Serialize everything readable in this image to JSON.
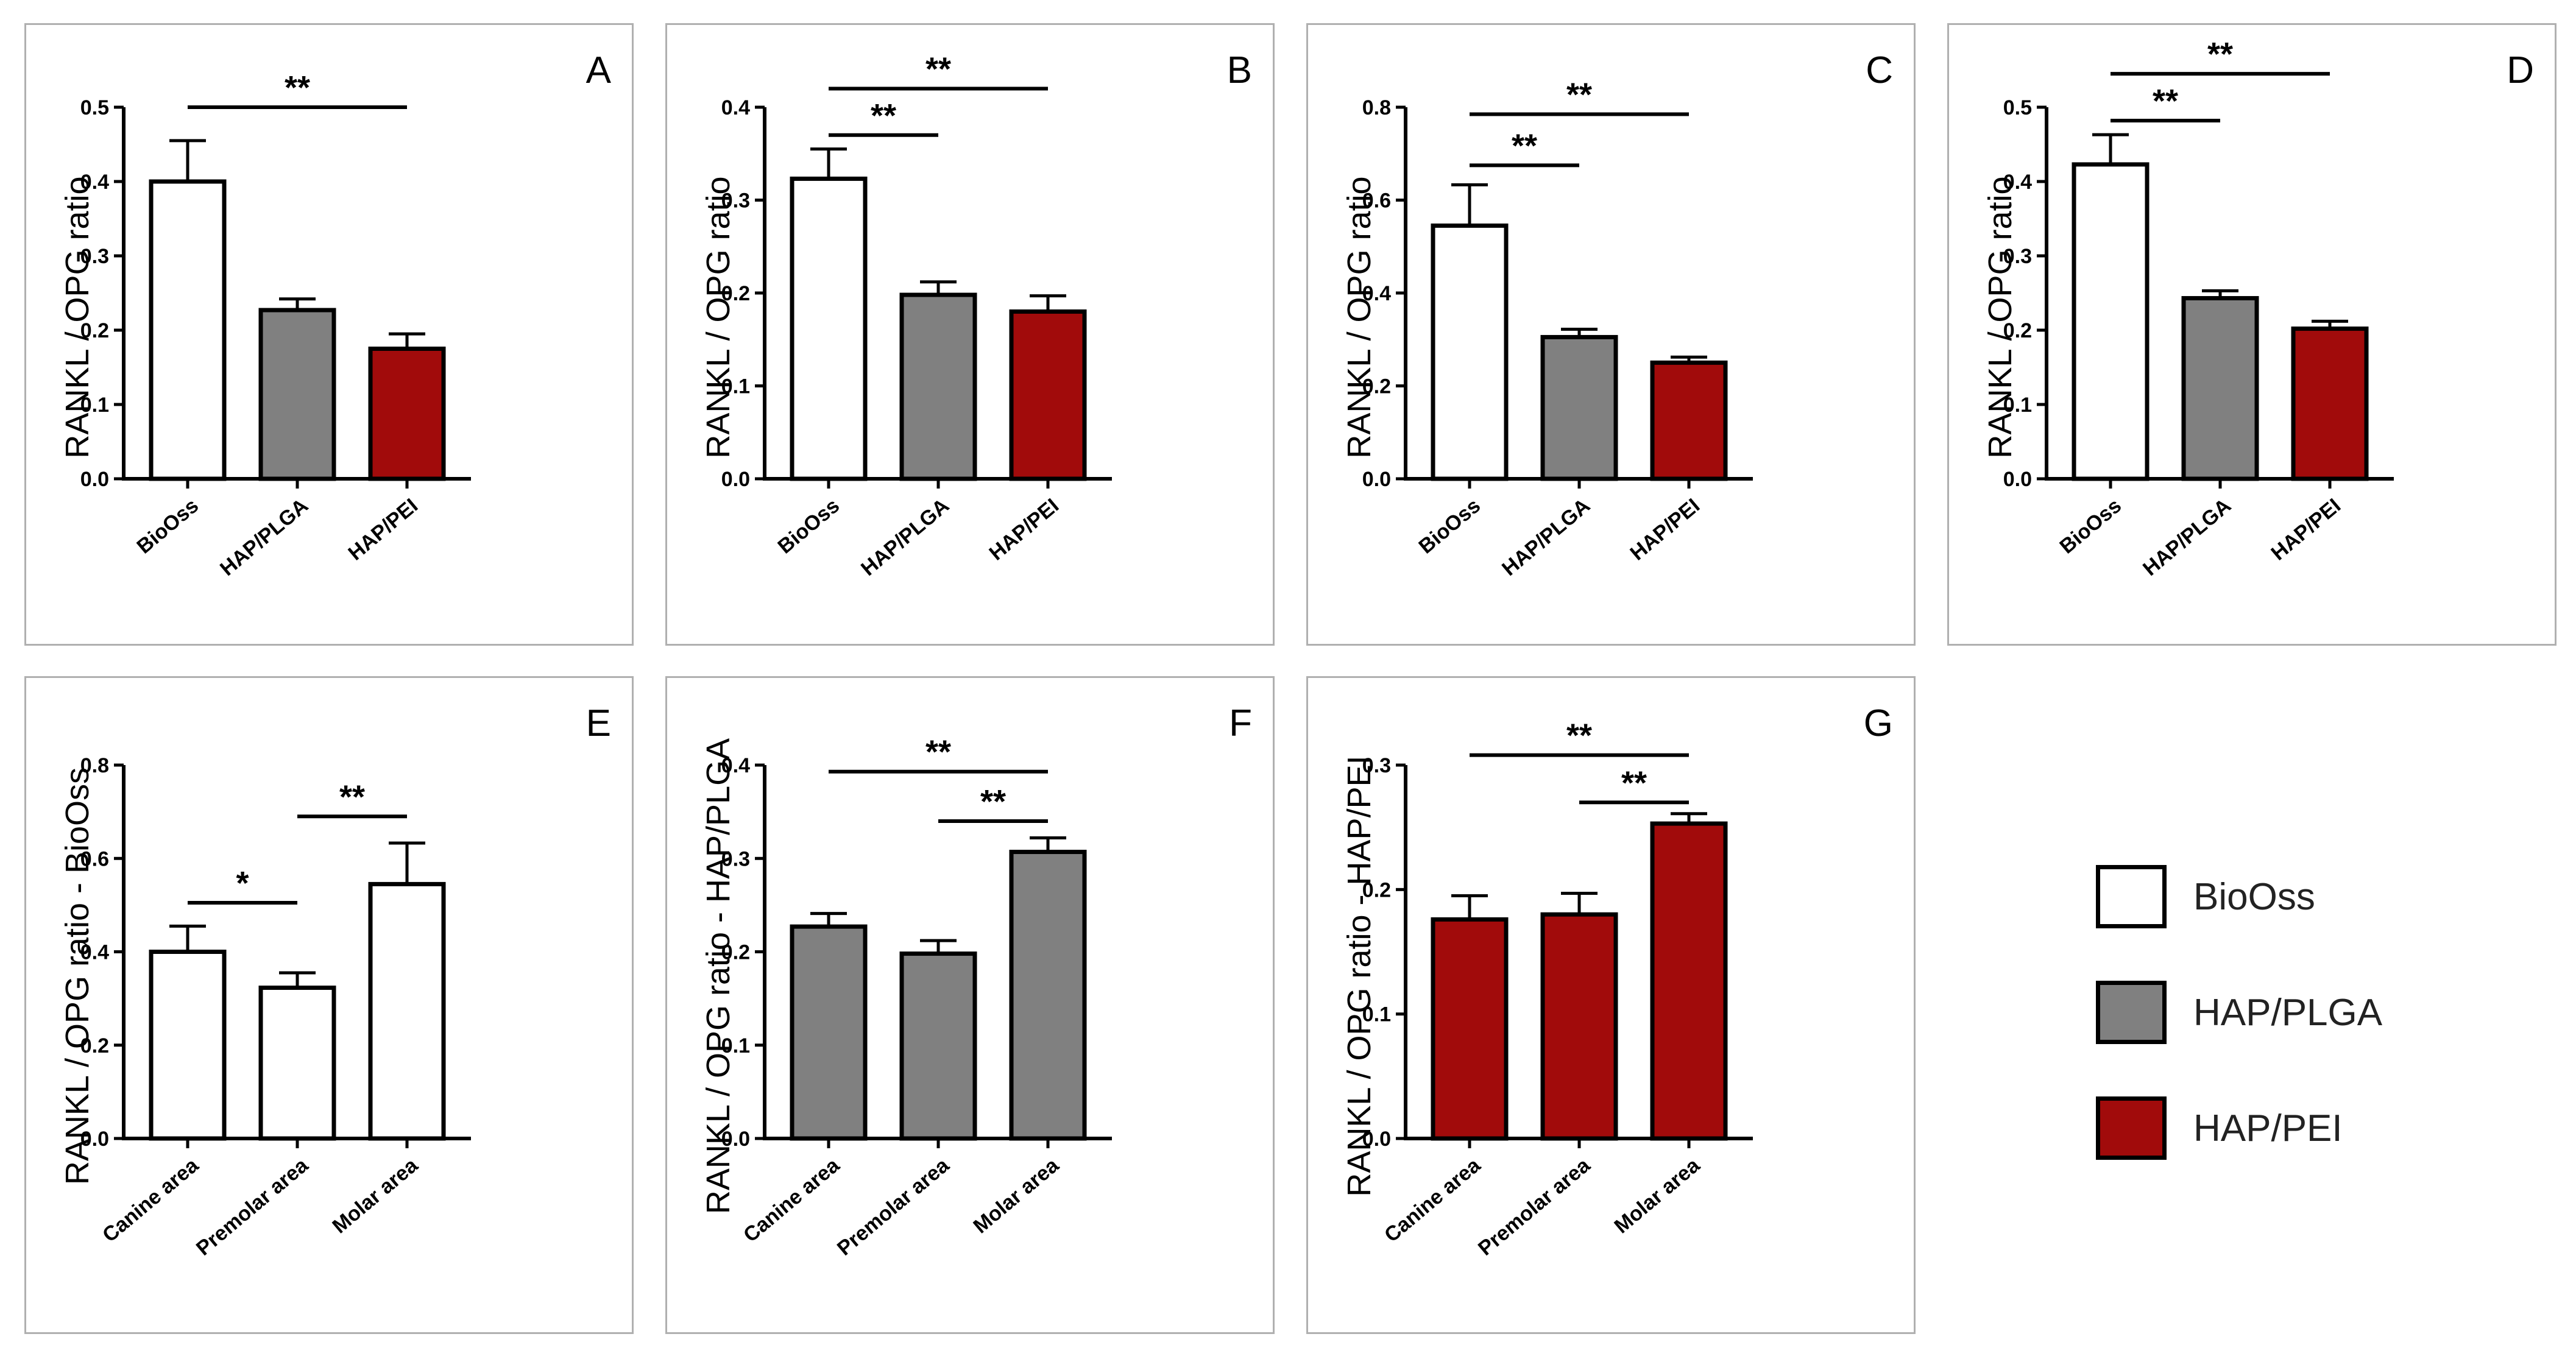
{
  "colors": {
    "BioOss": "#ffffff",
    "HAP/PLGA": "#808080",
    "HAP/PEI": "#a10b0b",
    "edge": "#000000"
  },
  "legend": {
    "items": [
      {
        "label": "BioOss",
        "color": "#ffffff"
      },
      {
        "label": "HAP/PLGA",
        "color": "#808080"
      },
      {
        "label": "HAP/PEI",
        "color": "#a10b0b"
      }
    ]
  },
  "chart_data": [
    {
      "panel": "A",
      "type": "bar",
      "ylabel": "RANKL / OPG ratio",
      "categories": [
        "BioOss",
        "HAP/PLGA",
        "HAP/PEI"
      ],
      "values": [
        0.4,
        0.227,
        0.175
      ],
      "errors": [
        0.055,
        0.015,
        0.02
      ],
      "colors": [
        "#ffffff",
        "#808080",
        "#a10b0b"
      ],
      "ylim": [
        0,
        0.5
      ],
      "yticks": [
        "0.0",
        "0.1",
        "0.2",
        "0.3",
        "0.4",
        "0.5"
      ],
      "significance": [
        {
          "from": 0,
          "to": 2,
          "label": "**",
          "y": 0.5
        }
      ]
    },
    {
      "panel": "B",
      "type": "bar",
      "ylabel": "RANKL / OPG ratio",
      "categories": [
        "BioOss",
        "HAP/PLGA",
        "HAP/PEI"
      ],
      "values": [
        0.323,
        0.198,
        0.18
      ],
      "errors": [
        0.032,
        0.014,
        0.017
      ],
      "colors": [
        "#ffffff",
        "#808080",
        "#a10b0b"
      ],
      "ylim": [
        0,
        0.4
      ],
      "yticks": [
        "0.0",
        "0.1",
        "0.2",
        "0.3",
        "0.4"
      ],
      "significance": [
        {
          "from": 0,
          "to": 1,
          "label": "**",
          "y": 0.37
        },
        {
          "from": 0,
          "to": 2,
          "label": "**",
          "y": 0.42
        }
      ]
    },
    {
      "panel": "C",
      "type": "bar",
      "ylabel": "RANKL / OPG ratio",
      "categories": [
        "BioOss",
        "HAP/PLGA",
        "HAP/PEI"
      ],
      "values": [
        0.545,
        0.305,
        0.25
      ],
      "errors": [
        0.088,
        0.017,
        0.012
      ],
      "colors": [
        "#ffffff",
        "#808080",
        "#a10b0b"
      ],
      "ylim": [
        0,
        0.8
      ],
      "yticks": [
        "0.0",
        "0.2",
        "0.4",
        "0.6",
        "0.8"
      ],
      "significance": [
        {
          "from": 0,
          "to": 1,
          "label": "**",
          "y": 0.675
        },
        {
          "from": 0,
          "to": 2,
          "label": "**",
          "y": 0.785
        }
      ]
    },
    {
      "panel": "D",
      "type": "bar",
      "ylabel": "RANKL / OPG ratio",
      "categories": [
        "BioOss",
        "HAP/PLGA",
        "HAP/PEI"
      ],
      "values": [
        0.423,
        0.243,
        0.202
      ],
      "errors": [
        0.04,
        0.01,
        0.01
      ],
      "colors": [
        "#ffffff",
        "#808080",
        "#a10b0b"
      ],
      "ylim": [
        0,
        0.5
      ],
      "yticks": [
        "0.0",
        "0.1",
        "0.2",
        "0.3",
        "0.4",
        "0.5"
      ],
      "significance": [
        {
          "from": 0,
          "to": 1,
          "label": "**",
          "y": 0.482
        },
        {
          "from": 0,
          "to": 2,
          "label": "**",
          "y": 0.545
        }
      ]
    },
    {
      "panel": "E",
      "type": "bar",
      "ylabel": "RANKL / OPG ratio - BioOss",
      "categories": [
        "Canine area",
        "Premolar area",
        "Molar area"
      ],
      "values": [
        0.4,
        0.323,
        0.545
      ],
      "errors": [
        0.055,
        0.032,
        0.088
      ],
      "colors": [
        "#ffffff",
        "#ffffff",
        "#ffffff"
      ],
      "ylim": [
        0,
        0.8
      ],
      "yticks": [
        "0.0",
        "0.2",
        "0.4",
        "0.6",
        "0.8"
      ],
      "significance": [
        {
          "from": 0,
          "to": 1,
          "label": "*",
          "y": 0.505
        },
        {
          "from": 1,
          "to": 2,
          "label": "**",
          "y": 0.69
        }
      ]
    },
    {
      "panel": "F",
      "type": "bar",
      "ylabel": "RANKL / OPG ratio - HAP/PLGA",
      "categories": [
        "Canine area",
        "Premolar area",
        "Molar area"
      ],
      "values": [
        0.227,
        0.198,
        0.307
      ],
      "errors": [
        0.014,
        0.014,
        0.015
      ],
      "colors": [
        "#808080",
        "#808080",
        "#808080"
      ],
      "ylim": [
        0,
        0.4
      ],
      "yticks": [
        "0.0",
        "0.1",
        "0.2",
        "0.3",
        "0.4"
      ],
      "significance": [
        {
          "from": 1,
          "to": 2,
          "label": "**",
          "y": 0.34
        },
        {
          "from": 0,
          "to": 2,
          "label": "**",
          "y": 0.393
        }
      ]
    },
    {
      "panel": "G",
      "type": "bar",
      "ylabel": "RANKL / OPG ratio - HAP/PEI",
      "categories": [
        "Canine area",
        "Premolar area",
        "Molar area"
      ],
      "values": [
        0.176,
        0.18,
        0.253
      ],
      "errors": [
        0.019,
        0.017,
        0.008
      ],
      "colors": [
        "#a10b0b",
        "#a10b0b",
        "#a10b0b"
      ],
      "ylim": [
        0,
        0.3
      ],
      "yticks": [
        "0.0",
        "0.1",
        "0.2",
        "0.3"
      ],
      "significance": [
        {
          "from": 1,
          "to": 2,
          "label": "**",
          "y": 0.27
        },
        {
          "from": 0,
          "to": 2,
          "label": "**",
          "y": 0.308
        }
      ]
    }
  ]
}
